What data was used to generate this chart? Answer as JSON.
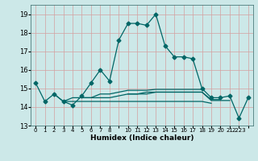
{
  "title": "",
  "xlabel": "Humidex (Indice chaleur)",
  "ylabel": "",
  "bg_color": "#cce8e8",
  "grid_color": "#d4a0a0",
  "line_color": "#006666",
  "xlim": [
    -0.5,
    23.5
  ],
  "ylim": [
    13.0,
    19.5
  ],
  "yticks": [
    13,
    14,
    15,
    16,
    17,
    18,
    19
  ],
  "xticks": [
    0,
    1,
    2,
    3,
    4,
    5,
    6,
    7,
    8,
    9,
    10,
    11,
    12,
    13,
    14,
    15,
    16,
    17,
    18,
    19,
    20,
    21,
    22,
    23
  ],
  "xtick_labels": [
    "0",
    "1",
    "2",
    "3",
    "4",
    "5",
    "6",
    "7",
    "8",
    "",
    "10",
    "11",
    "12",
    "13",
    "14",
    "15",
    "16",
    "17",
    "18",
    "19",
    "20",
    "21",
    "2223",
    ""
  ],
  "series": [
    [
      15.3,
      14.3,
      14.7,
      14.3,
      14.1,
      14.6,
      15.3,
      16.0,
      15.4,
      17.6,
      18.5,
      18.5,
      18.4,
      19.0,
      17.3,
      16.7,
      16.7,
      16.6,
      15.0,
      14.5,
      14.5,
      14.6,
      13.4,
      14.5
    ],
    [
      null,
      null,
      14.7,
      14.3,
      14.5,
      14.5,
      14.5,
      14.5,
      14.5,
      14.6,
      14.7,
      14.7,
      14.7,
      14.8,
      14.8,
      14.8,
      14.8,
      14.8,
      14.8,
      14.4,
      14.4,
      null,
      null,
      null
    ],
    [
      null,
      null,
      null,
      14.3,
      14.3,
      14.3,
      14.3,
      14.3,
      14.3,
      14.3,
      14.3,
      14.3,
      14.3,
      14.3,
      14.3,
      14.3,
      14.3,
      14.3,
      14.3,
      14.2,
      null,
      null,
      null,
      null
    ],
    [
      null,
      null,
      null,
      null,
      null,
      14.5,
      14.5,
      14.7,
      14.7,
      14.8,
      14.9,
      14.9,
      14.9,
      14.95,
      14.95,
      14.95,
      14.95,
      14.95,
      14.95,
      null,
      null,
      null,
      null,
      null
    ],
    [
      null,
      null,
      null,
      null,
      null,
      null,
      null,
      null,
      null,
      null,
      14.7,
      14.7,
      14.8,
      14.8,
      14.8,
      14.8,
      14.8,
      14.8,
      14.8,
      14.35,
      14.35,
      14.35,
      null,
      null
    ]
  ],
  "marker": "D",
  "markersize": 2.5,
  "linewidth": 0.9
}
